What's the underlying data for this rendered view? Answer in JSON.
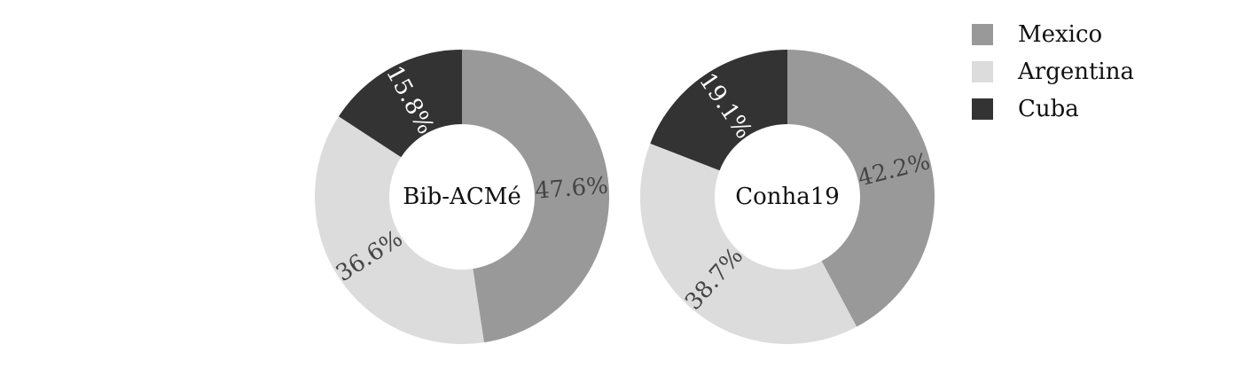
{
  "chart_data": {
    "type": "pie",
    "donut": true,
    "series_names": [
      "Mexico",
      "Argentina",
      "Cuba"
    ],
    "colors": [
      "#999999",
      "#dcdcdc",
      "#333333"
    ],
    "label_colors": [
      "#444444",
      "#444444",
      "#ffffff"
    ],
    "legend": {
      "position": "top-right",
      "entries": [
        "Mexico",
        "Argentina",
        "Cuba"
      ]
    },
    "charts": [
      {
        "center_label": "Bib-ACMé",
        "values": [
          47.6,
          36.6,
          15.8
        ],
        "labels": [
          "47.6%",
          "36.6%",
          "15.8%"
        ]
      },
      {
        "center_label": "Conha19",
        "values": [
          42.2,
          38.7,
          19.1
        ],
        "labels": [
          "42.2%",
          "38.7%",
          "19.1%"
        ]
      }
    ]
  }
}
